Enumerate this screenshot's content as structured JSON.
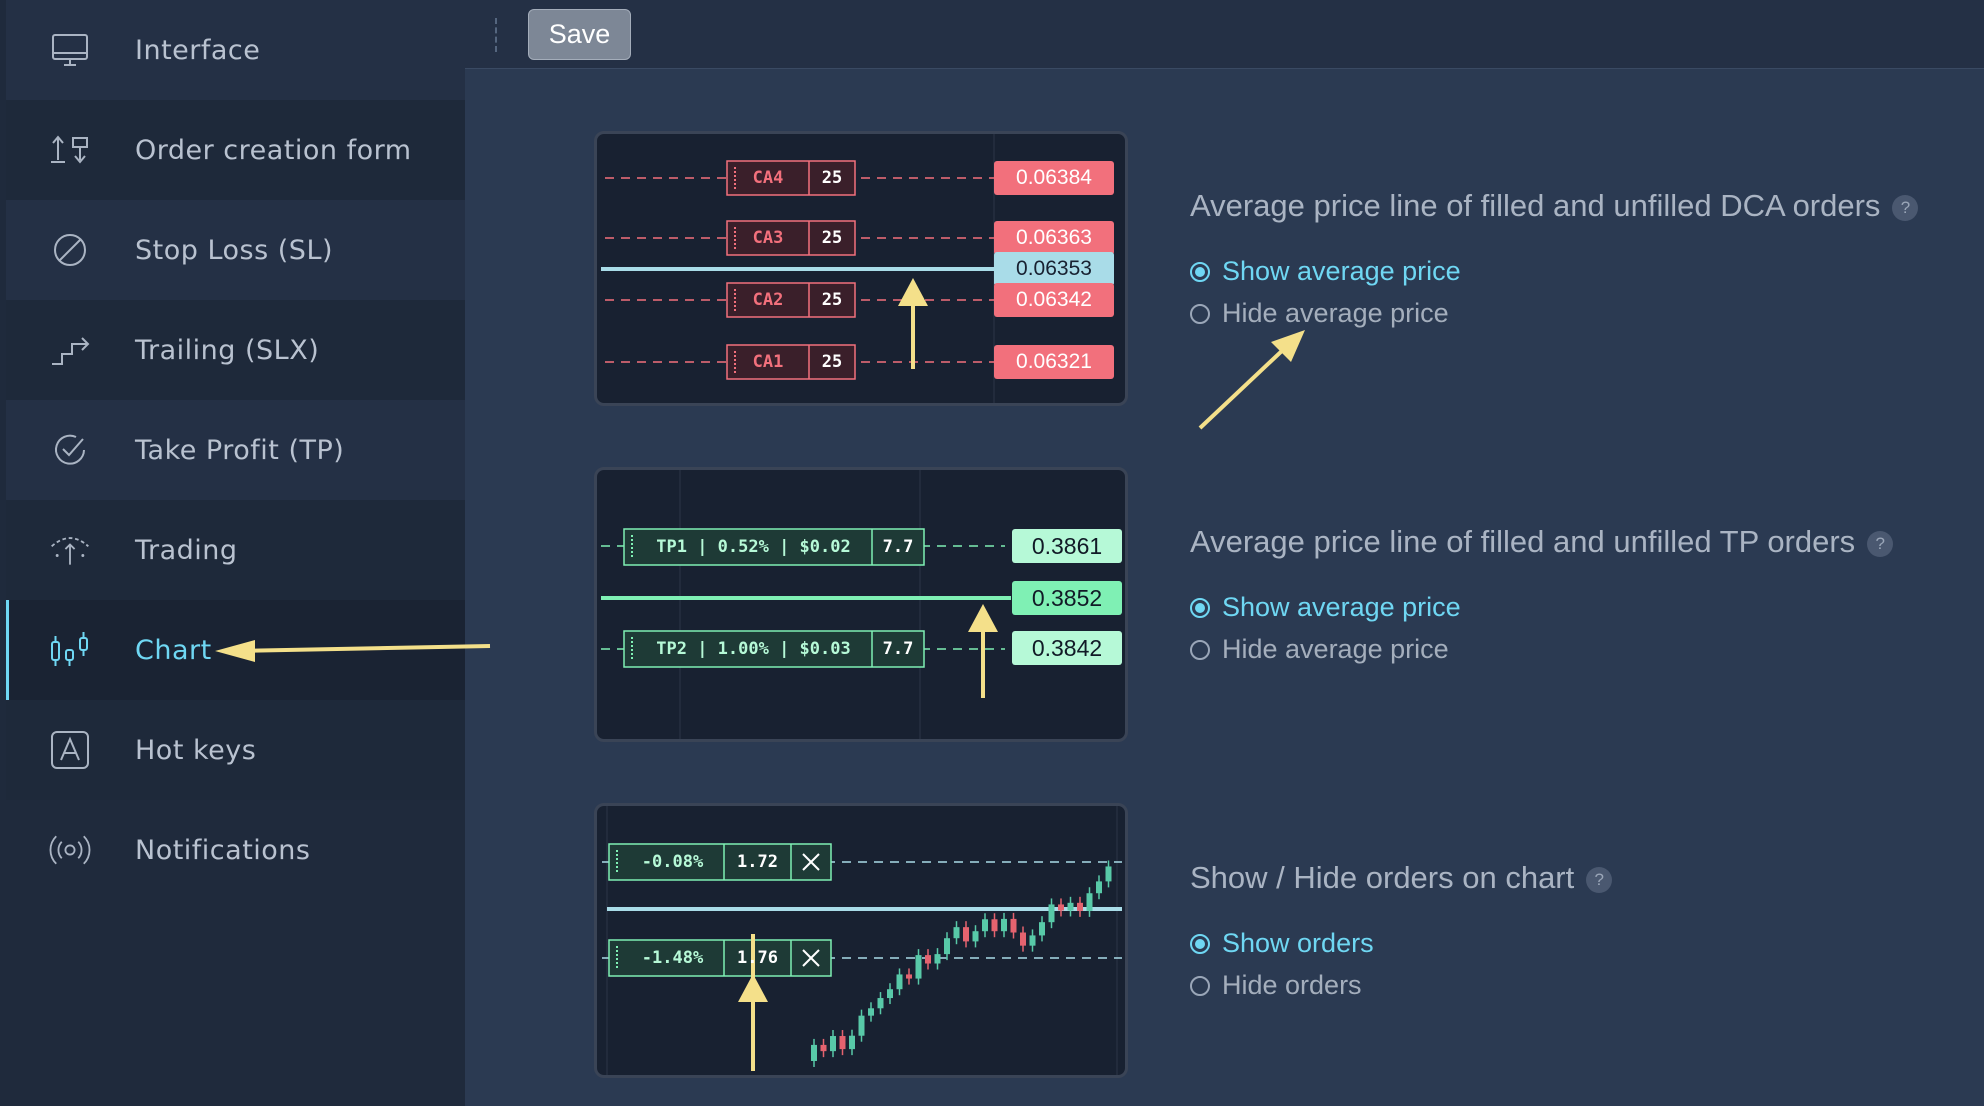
{
  "sidebar": {
    "items": [
      {
        "label": "Interface",
        "icon": "monitor-icon"
      },
      {
        "label": "Order creation form",
        "icon": "order-form-icon"
      },
      {
        "label": "Stop Loss (SL)",
        "icon": "stop-loss-icon"
      },
      {
        "label": "Trailing (SLX)",
        "icon": "trailing-icon"
      },
      {
        "label": "Take Profit (TP)",
        "icon": "take-profit-icon"
      },
      {
        "label": "Trading",
        "icon": "trading-icon"
      },
      {
        "label": "Chart",
        "icon": "chart-icon"
      },
      {
        "label": "Hot keys",
        "icon": "hotkey-icon"
      },
      {
        "label": "Notifications",
        "icon": "notification-icon"
      }
    ],
    "active": "Chart"
  },
  "toolbar": {
    "save_label": "Save"
  },
  "sections": [
    {
      "title": "Average price line of filled and unfilled DCA orders",
      "help": "?",
      "options": [
        "Show average price",
        "Hide average price"
      ],
      "selected": "Show average price"
    },
    {
      "title": "Average price line of filled and unfilled TP orders",
      "help": "?",
      "options": [
        "Show average price",
        "Hide average price"
      ],
      "selected": "Show average price"
    },
    {
      "title": "Show / Hide orders on chart",
      "help": "?",
      "options": [
        "Show orders",
        "Hide orders"
      ],
      "selected": "Show orders"
    }
  ],
  "preview_dca": {
    "orders": [
      {
        "name": "CA4",
        "qty": "25",
        "price": "0.06384"
      },
      {
        "name": "CA3",
        "qty": "25",
        "price": "0.06363"
      },
      {
        "name": "CA2",
        "qty": "25",
        "price": "0.06342"
      },
      {
        "name": "CA1",
        "qty": "25",
        "price": "0.06321"
      }
    ],
    "avg_price": "0.06353"
  },
  "preview_tp": {
    "orders": [
      {
        "label": "TP1 | 0.52% | $0.02",
        "qty": "7.7",
        "price": "0.3861"
      },
      {
        "label": "TP2 | 1.00% | $0.03",
        "qty": "7.7",
        "price": "0.3842"
      }
    ],
    "avg_price": "0.3852"
  },
  "preview_orders": {
    "orders": [
      {
        "label": "-0.08%",
        "qty": "1.72"
      },
      {
        "label": "-1.48%",
        "qty": "1.76"
      }
    ]
  },
  "colors": {
    "accent": "#6fd7f3",
    "dca_red": "#f2707c",
    "tp_green": "#7ff0b4",
    "arrow_yellow": "#f4e08a"
  }
}
